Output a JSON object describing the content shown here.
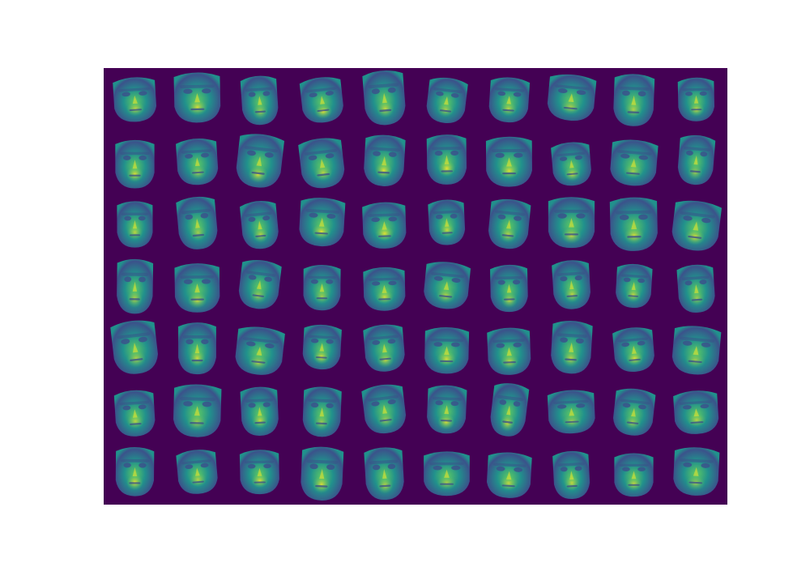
{
  "figure": {
    "kind": "image-grid",
    "rows": 7,
    "cols": 10,
    "colormap": "viridis",
    "background_color": "#440154",
    "page_background": "#ffffff",
    "palette": {
      "dark": "#440154",
      "deep": "#3b528b",
      "mid": "#21918c",
      "green": "#5ec962",
      "bright": "#fde725"
    },
    "subject_icon": "face-icon"
  }
}
